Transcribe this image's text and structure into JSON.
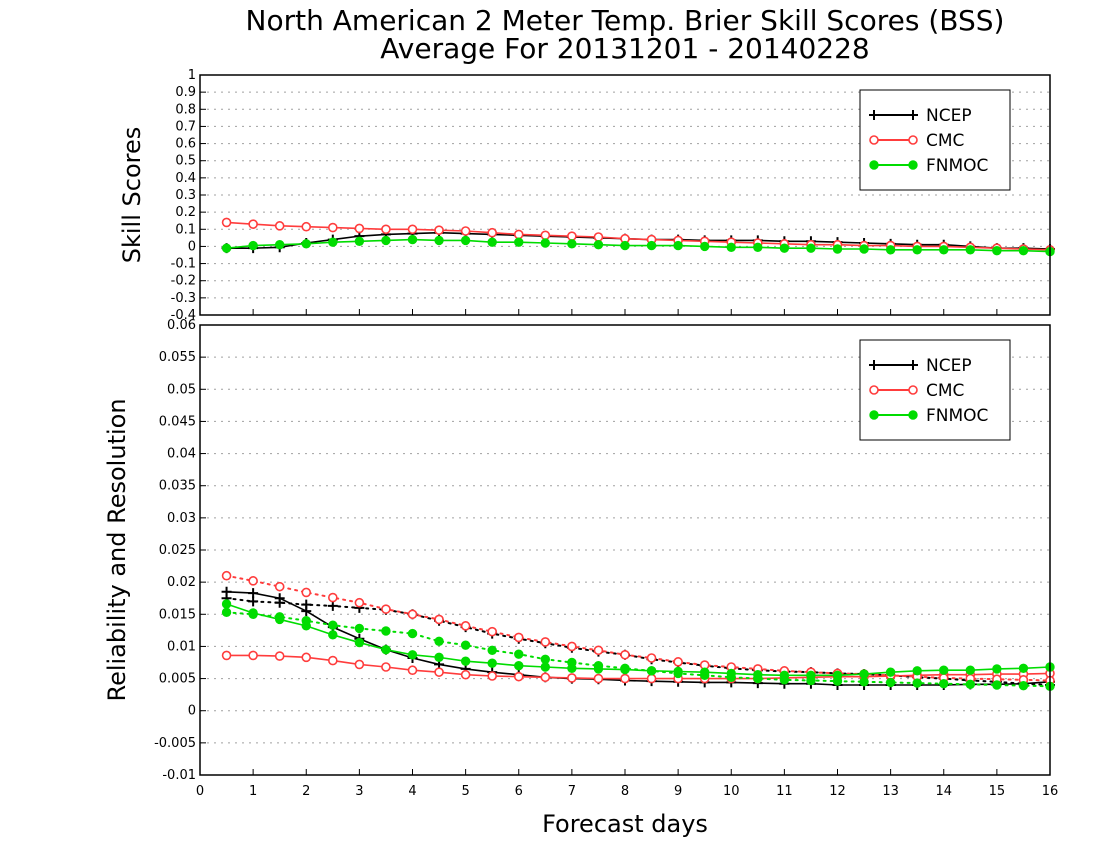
{
  "title": {
    "line1": "North American 2 Meter Temp. Brier Skill Scores (BSS)",
    "line2": "Average For 20131201 - 20140228"
  },
  "colors": {
    "NCEP": "#000000",
    "CMC": "#ff3c3c",
    "FNMOC": "#00dc00"
  },
  "chart_data": [
    {
      "type": "line",
      "ylabel": "Skill Scores",
      "xlim": [
        0,
        16
      ],
      "ylim": [
        -0.4,
        1
      ],
      "yticks": [
        "-0.4",
        "-0.3",
        "-0.2",
        "-0.1",
        "0",
        "0.1",
        "0.2",
        "0.3",
        "0.4",
        "0.5",
        "0.6",
        "0.7",
        "0.8",
        "0.9",
        "1"
      ],
      "grid": true,
      "legend": {
        "position": "top-right",
        "entries": [
          "NCEP",
          "CMC",
          "FNMOC"
        ]
      },
      "x": [
        0.5,
        1,
        1.5,
        2,
        2.5,
        3,
        3.5,
        4,
        4.5,
        5,
        5.5,
        6,
        6.5,
        7,
        7.5,
        8,
        8.5,
        9,
        9.5,
        10,
        10.5,
        11,
        11.5,
        12,
        12.5,
        13,
        13.5,
        14,
        14.5,
        15,
        15.5,
        16
      ],
      "series": [
        {
          "name": "NCEP",
          "style": "solid",
          "marker": "plus",
          "values": [
            -0.01,
            -0.01,
            -0.005,
            0.02,
            0.04,
            0.06,
            0.07,
            0.075,
            0.08,
            0.075,
            0.07,
            0.065,
            0.06,
            0.055,
            0.05,
            0.045,
            0.04,
            0.04,
            0.035,
            0.035,
            0.035,
            0.03,
            0.03,
            0.025,
            0.02,
            0.015,
            0.01,
            0.01,
            0.0,
            -0.01,
            -0.01,
            -0.015
          ]
        },
        {
          "name": "CMC",
          "style": "solid",
          "marker": "open-circle",
          "values": [
            0.14,
            0.13,
            0.12,
            0.115,
            0.11,
            0.105,
            0.1,
            0.1,
            0.095,
            0.09,
            0.08,
            0.07,
            0.065,
            0.06,
            0.055,
            0.045,
            0.04,
            0.035,
            0.03,
            0.025,
            0.02,
            0.015,
            0.01,
            0.01,
            0.005,
            0.005,
            0.0,
            0.0,
            -0.005,
            -0.01,
            -0.015,
            -0.02
          ]
        },
        {
          "name": "FNMOC",
          "style": "solid",
          "marker": "filled-circle",
          "values": [
            -0.01,
            0.005,
            0.01,
            0.015,
            0.025,
            0.03,
            0.035,
            0.04,
            0.035,
            0.035,
            0.025,
            0.025,
            0.02,
            0.015,
            0.01,
            0.005,
            0.005,
            0.005,
            0.0,
            -0.005,
            -0.005,
            -0.01,
            -0.01,
            -0.015,
            -0.015,
            -0.02,
            -0.02,
            -0.02,
            -0.02,
            -0.025,
            -0.025,
            -0.03
          ]
        }
      ]
    },
    {
      "type": "line",
      "ylabel": "Reliability and Resolution",
      "xlabel": "Forecast days",
      "xlim": [
        0,
        16
      ],
      "ylim": [
        -0.01,
        0.06
      ],
      "xticks": [
        "0",
        "1",
        "2",
        "3",
        "4",
        "5",
        "6",
        "7",
        "8",
        "9",
        "10",
        "11",
        "12",
        "13",
        "14",
        "15",
        "16"
      ],
      "yticks": [
        "-0.01",
        "-0.005",
        "0",
        "0.005",
        "0.01",
        "0.015",
        "0.02",
        "0.025",
        "0.03",
        "0.035",
        "0.04",
        "0.045",
        "0.05",
        "0.055",
        "0.06"
      ],
      "grid": true,
      "legend": {
        "position": "top-right",
        "entries": [
          "NCEP",
          "CMC",
          "FNMOC"
        ]
      },
      "x": [
        0.5,
        1,
        1.5,
        2,
        2.5,
        3,
        3.5,
        4,
        4.5,
        5,
        5.5,
        6,
        6.5,
        7,
        7.5,
        8,
        8.5,
        9,
        9.5,
        10,
        10.5,
        11,
        11.5,
        12,
        12.5,
        13,
        13.5,
        14,
        14.5,
        15,
        15.5,
        16
      ],
      "series": [
        {
          "name": "NCEP",
          "style": "solid",
          "marker": "plus",
          "values": [
            0.0185,
            0.0183,
            0.0175,
            0.0155,
            0.013,
            0.0112,
            0.0095,
            0.0082,
            0.0072,
            0.0065,
            0.006,
            0.0056,
            0.0052,
            0.005,
            0.0049,
            0.0047,
            0.0046,
            0.0045,
            0.0044,
            0.0044,
            0.0043,
            0.0042,
            0.0042,
            0.004,
            0.004,
            0.004,
            0.004,
            0.004,
            0.0041,
            0.0041,
            0.0042,
            0.0045
          ]
        },
        {
          "name": "NCEP",
          "style": "dotted",
          "marker": "plus",
          "values": [
            0.0175,
            0.017,
            0.0168,
            0.0165,
            0.0163,
            0.016,
            0.0157,
            0.015,
            0.014,
            0.013,
            0.012,
            0.0112,
            0.0105,
            0.0098,
            0.0092,
            0.0087,
            0.008,
            0.0075,
            0.007,
            0.0066,
            0.0063,
            0.0061,
            0.006,
            0.0058,
            0.0057,
            0.0055,
            0.0052,
            0.005,
            0.0047,
            0.0045,
            0.0042,
            0.004
          ]
        },
        {
          "name": "CMC",
          "style": "solid",
          "marker": "open-circle",
          "values": [
            0.0086,
            0.0086,
            0.0085,
            0.0083,
            0.0078,
            0.0072,
            0.0068,
            0.0063,
            0.006,
            0.0056,
            0.0054,
            0.0053,
            0.0052,
            0.0051,
            0.005,
            0.005,
            0.005,
            0.005,
            0.005,
            0.005,
            0.005,
            0.0051,
            0.0052,
            0.0053,
            0.0053,
            0.0054,
            0.0055,
            0.0056,
            0.0056,
            0.0057,
            0.0057,
            0.0058
          ]
        },
        {
          "name": "CMC",
          "style": "dotted",
          "marker": "open-circle",
          "values": [
            0.021,
            0.0202,
            0.0193,
            0.0184,
            0.0176,
            0.0168,
            0.0158,
            0.015,
            0.0142,
            0.0132,
            0.0123,
            0.0114,
            0.0107,
            0.01,
            0.0094,
            0.0087,
            0.0082,
            0.0076,
            0.0071,
            0.0068,
            0.0065,
            0.0062,
            0.006,
            0.0058,
            0.0057,
            0.0055,
            0.0053,
            0.0051,
            0.005,
            0.0049,
            0.0048,
            0.0047
          ]
        },
        {
          "name": "FNMOC",
          "style": "solid",
          "marker": "filled-circle",
          "values": [
            0.0166,
            0.0152,
            0.0142,
            0.0132,
            0.0118,
            0.0106,
            0.0095,
            0.0087,
            0.0083,
            0.0077,
            0.0074,
            0.007,
            0.0068,
            0.0066,
            0.0065,
            0.0064,
            0.0062,
            0.0061,
            0.006,
            0.0058,
            0.0056,
            0.0055,
            0.0055,
            0.0055,
            0.0057,
            0.006,
            0.0062,
            0.0063,
            0.0063,
            0.0065,
            0.0066,
            0.0068
          ]
        },
        {
          "name": "FNMOC",
          "style": "dotted",
          "marker": "filled-circle",
          "values": [
            0.0153,
            0.015,
            0.0146,
            0.014,
            0.0133,
            0.0128,
            0.0124,
            0.012,
            0.0108,
            0.0102,
            0.0094,
            0.0088,
            0.008,
            0.0075,
            0.007,
            0.0066,
            0.0062,
            0.0058,
            0.0055,
            0.0052,
            0.005,
            0.0048,
            0.0047,
            0.0046,
            0.0045,
            0.0044,
            0.0043,
            0.0042,
            0.0041,
            0.004,
            0.0039,
            0.0038
          ]
        }
      ]
    }
  ]
}
